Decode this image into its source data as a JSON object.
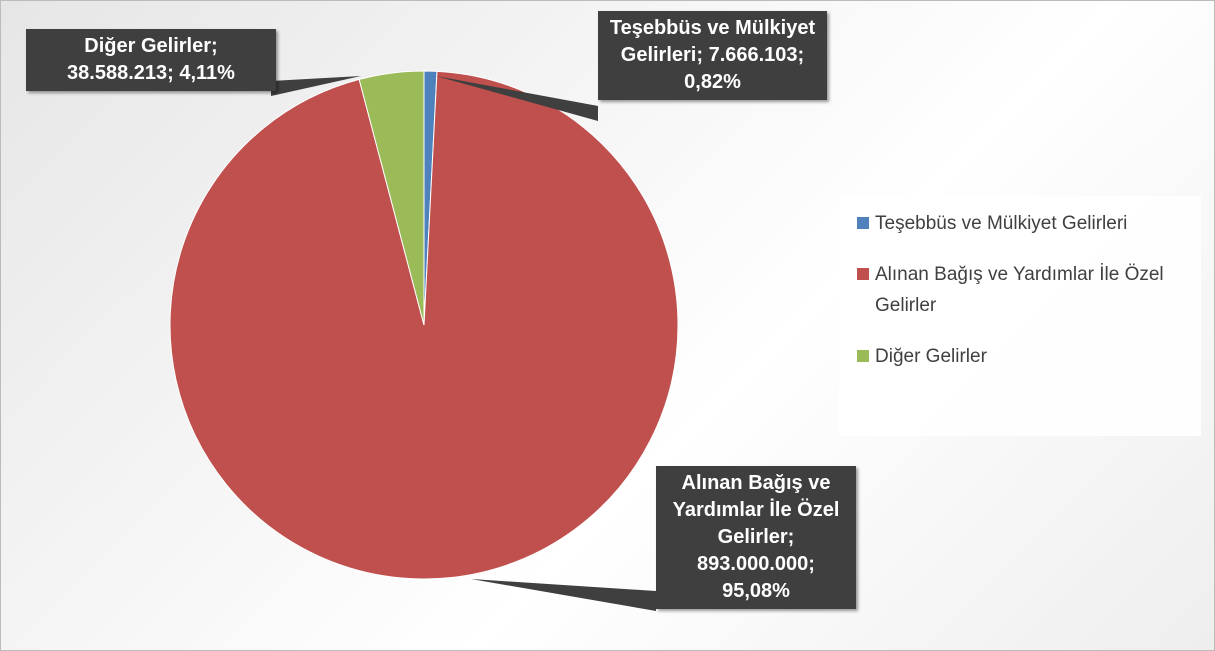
{
  "chart_data": {
    "type": "pie",
    "categories": [
      "Teşebbüs ve Mülkiyet Gelirleri",
      "Alınan Bağış ve Yardımlar İle Özel Gelirler",
      "Diğer Gelirler"
    ],
    "values": [
      7666103,
      893000000,
      38588213
    ],
    "value_labels": [
      "Teşebbüs ve Mülkiyet Gelirleri; 7.666.103; 0,82%",
      "Alınan Bağış ve Yardımlar İle Özel Gelirler; 893.000.000; 95,08%",
      "Diğer Gelirler; 38.588.213; 4,11%"
    ],
    "colors": [
      "#4f81bd",
      "#c0504d",
      "#9bbb59"
    ],
    "legend": "right"
  }
}
